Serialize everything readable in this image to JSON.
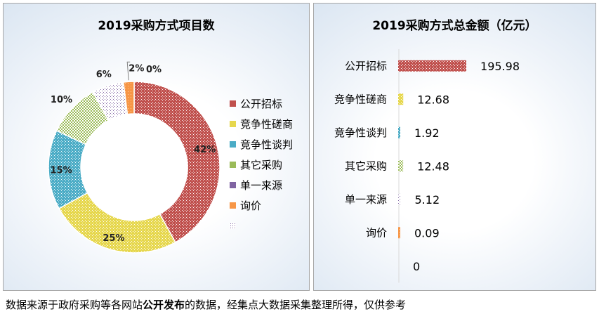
{
  "colors": {
    "gongkai": "#c0504d",
    "cuoshang": "#e6d74d",
    "tanpan": "#4bacc6",
    "qita": "#9bbb59",
    "danyi": "#8064a2",
    "xunjia": "#f79646",
    "other": "#8064a2"
  },
  "chart_data": [
    {
      "type": "pie",
      "variant": "donut",
      "title": "2019采购方式项目数",
      "categories": [
        "公开招标",
        "竞争性磋商",
        "竞争性谈判",
        "其它采购",
        "单一来源",
        "询价",
        ""
      ],
      "values": [
        42,
        25,
        15,
        10,
        6,
        2,
        0
      ],
      "data_labels": [
        "42%",
        "25%",
        "15%",
        "10%",
        "6%",
        "2%",
        "0%"
      ],
      "legend_position": "right"
    },
    {
      "type": "bar",
      "orientation": "horizontal",
      "title": "2019采购方式总金额（亿元）",
      "categories": [
        "公开招标",
        "竞争性磋商",
        "竞争性谈判",
        "其它采购",
        "单一来源",
        "询价",
        ""
      ],
      "values": [
        195.98,
        12.68,
        1.92,
        12.48,
        5.12,
        0.09,
        0
      ],
      "data_labels": [
        "195.98",
        "12.68",
        "1.92",
        "12.48",
        "5.12",
        "0.09",
        "0"
      ],
      "xlim": [
        0,
        200
      ]
    }
  ],
  "footnote": {
    "prefix": "数据来源于政府采购等各网站",
    "bold": "公开发布",
    "suffix": "的数据，经集点大数据采集整理所得，仅供参考"
  }
}
